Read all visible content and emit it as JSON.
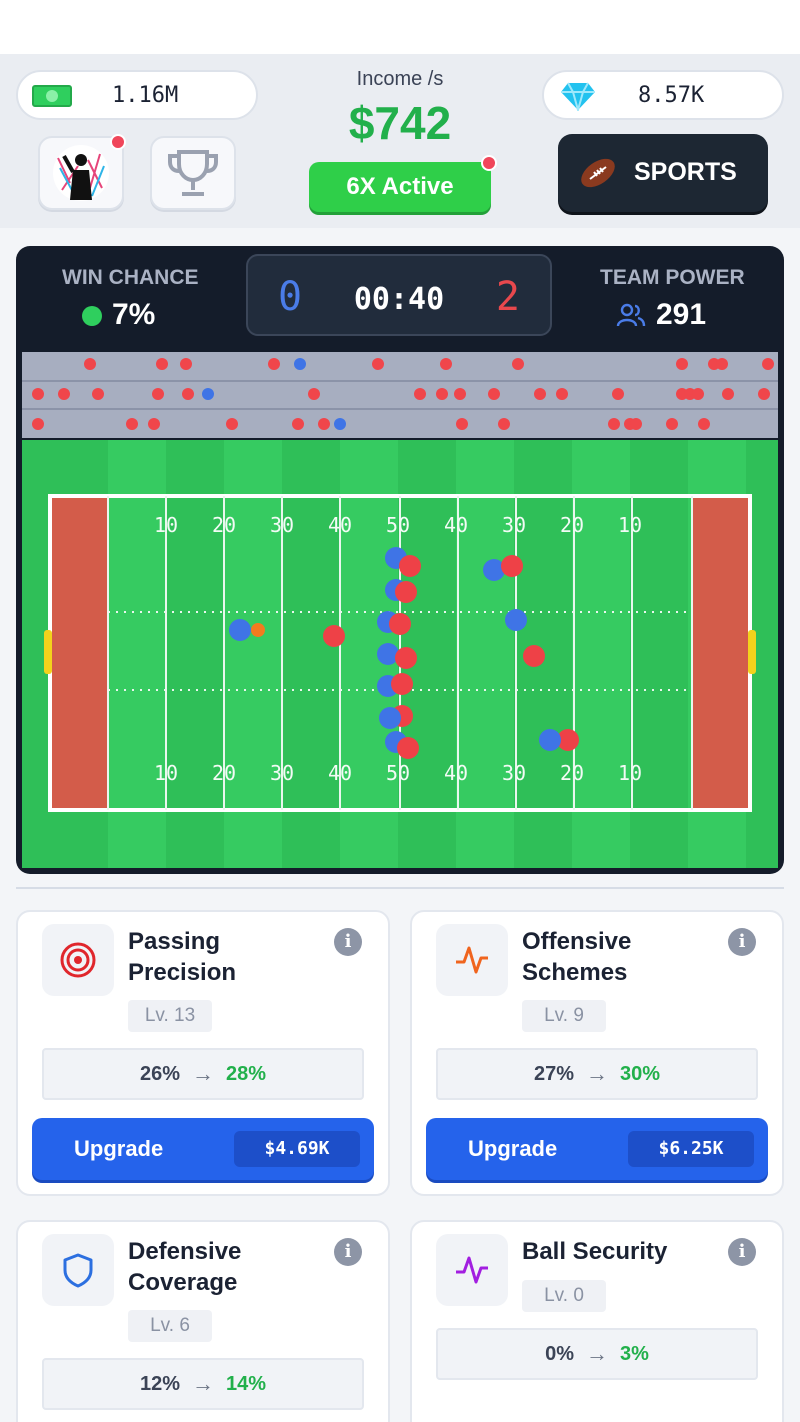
{
  "hud": {
    "cash": "1.16M",
    "income_label": "Income /s",
    "income_value": "$742",
    "multiplier": "6X Active",
    "gems": "8.57K",
    "sport_button": "SPORTS"
  },
  "match": {
    "win_chance_label": "WIN CHANCE",
    "win_chance_value": "7%",
    "score_home": "0",
    "timer": "00:40",
    "score_away": "2",
    "team_power_label": "TEAM POWER",
    "team_power_value": "291",
    "yard_markers": [
      "10",
      "20",
      "30",
      "40",
      "50",
      "40",
      "30",
      "20",
      "10"
    ]
  },
  "upgrades": [
    {
      "title": "Passing Precision",
      "level": "Lv. 13",
      "from": "26%",
      "to": "28%",
      "button": "Upgrade",
      "cost": "$4.69K",
      "icon": "target-icon"
    },
    {
      "title": "Offensive Schemes",
      "level": "Lv. 9",
      "from": "27%",
      "to": "30%",
      "button": "Upgrade",
      "cost": "$6.25K",
      "icon": "pulse-icon"
    },
    {
      "title": "Defensive Coverage",
      "level": "Lv. 6",
      "from": "12%",
      "to": "14%",
      "icon": "shield-icon"
    },
    {
      "title": "Ball Security",
      "level": "Lv. 0",
      "from": "0%",
      "to": "3%",
      "icon": "pulse-icon"
    }
  ],
  "colors": {
    "accent_green": "#22b04b",
    "upgrade_blue": "#2563eb",
    "home_team": "#4a7ce8",
    "away_team": "#e8484d"
  }
}
